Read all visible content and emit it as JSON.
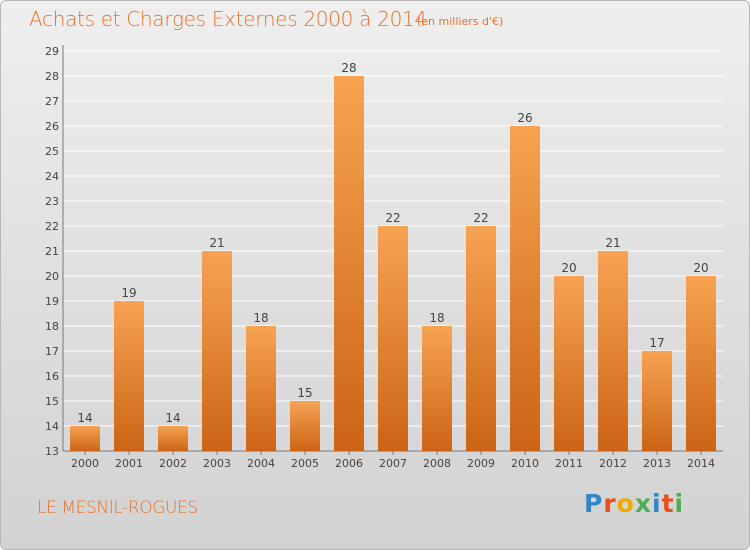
{
  "header": {
    "title": "Achats et Charges Externes 2000 à 2014",
    "unit": "(en milliers d'€)"
  },
  "footer": {
    "place": "LE MESNIL-ROGUES",
    "logo": "Proxiti"
  },
  "chart_data": {
    "type": "bar",
    "title": "Achats et Charges Externes 2000 à 2014",
    "categories": [
      "2000",
      "2001",
      "2002",
      "2003",
      "2004",
      "2005",
      "2006",
      "2007",
      "2008",
      "2009",
      "2010",
      "2011",
      "2012",
      "2013",
      "2014"
    ],
    "values": [
      14,
      19,
      14,
      21,
      18,
      15,
      28,
      22,
      18,
      22,
      26,
      20,
      21,
      17,
      20
    ],
    "ylim": [
      13,
      29
    ],
    "yticks": [
      13,
      14,
      15,
      16,
      17,
      18,
      19,
      20,
      21,
      22,
      23,
      24,
      25,
      26,
      27,
      28,
      29
    ],
    "grid": true,
    "legend": "none",
    "colors": {
      "bar_top": "#f7a352",
      "bar_bottom": "#cc6416",
      "text": "#e8702a",
      "grid": "#ffffff"
    }
  }
}
